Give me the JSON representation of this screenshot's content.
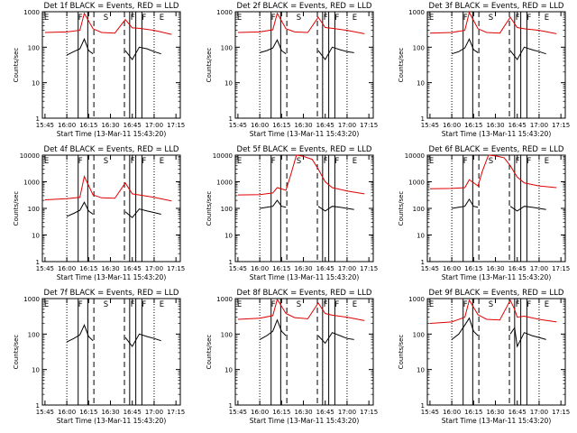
{
  "chart_data": [
    {
      "type": "line",
      "title": "Det 1f BLACK = Events, RED = LLD",
      "xlabel": "Start Time (13-Mar-11 15:43:20)",
      "ylabel": "Counts/sec",
      "ylim": [
        1,
        1000
      ],
      "yscale": "log",
      "x_ticks": [
        "15:45",
        "16:00",
        "16:15",
        "16:30",
        "16:45",
        "17:00",
        "17:15"
      ],
      "y_ticks": [
        "1",
        "10",
        "100",
        "1000"
      ],
      "markers": [
        "E",
        "F",
        "S",
        "F",
        "F",
        "E"
      ],
      "series": [
        {
          "name": "Events",
          "color": "#000000",
          "segments": [
            {
              "x": [
                16.0,
                16.08,
                16.15,
                16.2,
                16.25,
                16.3
              ],
              "y": [
                60,
                75,
                90,
                170,
                80,
                65
              ]
            },
            {
              "x": [
                16.67,
                16.75,
                16.83,
                16.92,
                17.0,
                17.08
              ],
              "y": [
                80,
                45,
                100,
                90,
                75,
                65
              ]
            }
          ]
        },
        {
          "name": "LLD",
          "color": "#e00000",
          "x": [
            15.75,
            16.0,
            16.15,
            16.2,
            16.3,
            16.4,
            16.55,
            16.67,
            16.75,
            16.83,
            17.0,
            17.2
          ],
          "y": [
            260,
            270,
            300,
            900,
            330,
            260,
            250,
            600,
            350,
            340,
            300,
            230
          ]
        }
      ]
    },
    {
      "type": "line",
      "title": "Det 2f BLACK = Events, RED = LLD",
      "xlabel": "Start Time (13-Mar-11 15:43:20)",
      "ylabel": "Counts/sec",
      "ylim": [
        1,
        1000
      ],
      "yscale": "log",
      "x_ticks": [
        "15:45",
        "16:00",
        "16:15",
        "16:30",
        "16:45",
        "17:00",
        "17:15"
      ],
      "y_ticks": [
        "1",
        "10",
        "100",
        "1000"
      ],
      "markers": [
        "E",
        "F",
        "S",
        "F",
        "F",
        "E"
      ],
      "series": [
        {
          "name": "Events",
          "color": "#000000",
          "segments": [
            {
              "x": [
                16.0,
                16.08,
                16.15,
                16.2,
                16.25,
                16.3
              ],
              "y": [
                70,
                80,
                95,
                160,
                80,
                65
              ]
            },
            {
              "x": [
                16.67,
                16.75,
                16.83,
                16.92,
                17.0,
                17.08
              ],
              "y": [
                80,
                45,
                100,
                85,
                75,
                70
              ]
            }
          ]
        },
        {
          "name": "LLD",
          "color": "#e00000",
          "x": [
            15.75,
            16.0,
            16.15,
            16.2,
            16.3,
            16.4,
            16.55,
            16.67,
            16.75,
            16.83,
            17.0,
            17.2
          ],
          "y": [
            260,
            270,
            310,
            900,
            330,
            270,
            260,
            700,
            360,
            340,
            300,
            240
          ]
        }
      ]
    },
    {
      "type": "line",
      "title": "Det 3f BLACK = Events, RED = LLD",
      "xlabel": "Start Time (13-Mar-11 15:43:20)",
      "ylabel": "Counts/sec",
      "ylim": [
        1,
        1000
      ],
      "yscale": "log",
      "x_ticks": [
        "15:45",
        "16:00",
        "16:15",
        "16:30",
        "16:45",
        "17:00",
        "17:15"
      ],
      "y_ticks": [
        "1",
        "10",
        "100",
        "1000"
      ],
      "markers": [
        "E",
        "F",
        "S",
        "F",
        "F",
        "E"
      ],
      "series": [
        {
          "name": "Events",
          "color": "#000000",
          "segments": [
            {
              "x": [
                16.0,
                16.08,
                16.15,
                16.2,
                16.25,
                16.3
              ],
              "y": [
                65,
                75,
                95,
                170,
                85,
                70
              ]
            },
            {
              "x": [
                16.67,
                16.75,
                16.83,
                16.92,
                17.0,
                17.08
              ],
              "y": [
                80,
                45,
                100,
                85,
                75,
                65
              ]
            }
          ]
        },
        {
          "name": "LLD",
          "color": "#e00000",
          "x": [
            15.75,
            16.0,
            16.15,
            16.2,
            16.3,
            16.4,
            16.55,
            16.67,
            16.75,
            16.83,
            17.0,
            17.2
          ],
          "y": [
            250,
            260,
            300,
            950,
            330,
            260,
            250,
            700,
            360,
            330,
            300,
            240
          ]
        }
      ]
    },
    {
      "type": "line",
      "title": "Det 4f BLACK = Events, RED = LLD",
      "xlabel": "Start Time (13-Mar-11 15:43:20)",
      "ylabel": "Counts/sec",
      "ylim": [
        1,
        10000
      ],
      "yscale": "log",
      "x_ticks": [
        "15:45",
        "16:00",
        "16:15",
        "16:30",
        "16:45",
        "17:00",
        "17:15"
      ],
      "y_ticks": [
        "1",
        "10",
        "100",
        "1000",
        "10000"
      ],
      "markers": [
        "E",
        "F",
        "S",
        "F",
        "F",
        "E"
      ],
      "series": [
        {
          "name": "Events",
          "color": "#000000",
          "segments": [
            {
              "x": [
                16.0,
                16.08,
                16.15,
                16.2,
                16.25,
                16.3
              ],
              "y": [
                50,
                65,
                85,
                170,
                80,
                60
              ]
            },
            {
              "x": [
                16.67,
                16.75,
                16.83,
                16.92,
                17.0,
                17.08
              ],
              "y": [
                75,
                45,
                95,
                80,
                70,
                60
              ]
            }
          ]
        },
        {
          "name": "LLD",
          "color": "#e00000",
          "x": [
            15.75,
            16.0,
            16.15,
            16.2,
            16.3,
            16.4,
            16.55,
            16.67,
            16.75,
            16.83,
            17.0,
            17.2
          ],
          "y": [
            210,
            230,
            260,
            1600,
            320,
            250,
            240,
            900,
            350,
            320,
            260,
            190
          ]
        }
      ]
    },
    {
      "type": "line",
      "title": "Det 5f BLACK = Events, RED = LLD",
      "xlabel": "Start Time (13-Mar-11 15:43:20)",
      "ylabel": "Counts/sec",
      "ylim": [
        1,
        10000
      ],
      "yscale": "log",
      "x_ticks": [
        "15:45",
        "16:00",
        "16:15",
        "16:30",
        "16:45",
        "17:00",
        "17:15"
      ],
      "y_ticks": [
        "1",
        "10",
        "100",
        "1000",
        "10000"
      ],
      "markers": [
        "E",
        "F",
        "S",
        "F",
        "F",
        "E"
      ],
      "series": [
        {
          "name": "Events",
          "color": "#000000",
          "segments": [
            {
              "x": [
                16.0,
                16.08,
                16.15,
                16.2,
                16.25,
                16.3
              ],
              "y": [
                100,
                110,
                120,
                200,
                120,
                110
              ]
            },
            {
              "x": [
                16.67,
                16.75,
                16.83,
                16.92,
                17.0,
                17.08
              ],
              "y": [
                120,
                80,
                120,
                110,
                100,
                90
              ]
            }
          ]
        },
        {
          "name": "LLD",
          "color": "#e00000",
          "x": [
            15.75,
            16.0,
            16.15,
            16.2,
            16.3,
            16.35,
            16.42,
            16.5,
            16.6,
            16.67,
            16.75,
            16.83,
            17.0,
            17.2
          ],
          "y": [
            320,
            330,
            380,
            600,
            480,
            1600,
            10000,
            9000,
            7000,
            3000,
            1000,
            600,
            450,
            350
          ]
        }
      ]
    },
    {
      "type": "line",
      "title": "Det 6f BLACK = Events, RED = LLD",
      "xlabel": "Start Time (13-Mar-11 15:43:20)",
      "ylabel": "Counts/sec",
      "ylim": [
        1,
        10000
      ],
      "yscale": "log",
      "x_ticks": [
        "15:45",
        "16:00",
        "16:15",
        "16:30",
        "16:45",
        "17:00",
        "17:15"
      ],
      "y_ticks": [
        "1",
        "10",
        "100",
        "1000",
        "10000"
      ],
      "markers": [
        "E",
        "F",
        "S",
        "F",
        "F",
        "E"
      ],
      "series": [
        {
          "name": "Events",
          "color": "#000000",
          "segments": [
            {
              "x": [
                16.0,
                16.08,
                16.15,
                16.2,
                16.25,
                16.3
              ],
              "y": [
                100,
                110,
                120,
                220,
                120,
                110
              ]
            },
            {
              "x": [
                16.67,
                16.75,
                16.83,
                16.92,
                17.0,
                17.08
              ],
              "y": [
                120,
                80,
                120,
                110,
                100,
                90
              ]
            }
          ]
        },
        {
          "name": "LLD",
          "color": "#e00000",
          "x": [
            15.75,
            16.0,
            16.15,
            16.2,
            16.3,
            16.35,
            16.42,
            16.5,
            16.6,
            16.67,
            16.75,
            16.83,
            17.0,
            17.2
          ],
          "y": [
            550,
            560,
            600,
            1200,
            700,
            2500,
            10000,
            9500,
            8000,
            4000,
            1500,
            900,
            700,
            600
          ]
        }
      ]
    },
    {
      "type": "line",
      "title": "Det 7f BLACK = Events, RED = LLD",
      "xlabel": "Start Time (13-Mar-11 15:43:20)",
      "ylabel": "Counts/sec",
      "ylim": [
        1,
        1000
      ],
      "yscale": "log",
      "x_ticks": [
        "15:45",
        "16:00",
        "16:15",
        "16:30",
        "16:45",
        "17:00",
        "17:15"
      ],
      "y_ticks": [
        "1",
        "10",
        "100",
        "1000"
      ],
      "markers": [
        "E",
        "F",
        "S",
        "F",
        "F",
        "E"
      ],
      "series": [
        {
          "name": "Events",
          "color": "#000000",
          "segments": [
            {
              "x": [
                16.0,
                16.08,
                16.15,
                16.2,
                16.25,
                16.3
              ],
              "y": [
                60,
                75,
                95,
                180,
                85,
                65
              ]
            },
            {
              "x": [
                16.67,
                16.75,
                16.83,
                16.92,
                17.0,
                17.08
              ],
              "y": [
                80,
                45,
                100,
                85,
                75,
                65
              ]
            }
          ]
        }
      ]
    },
    {
      "type": "line",
      "title": "Det 8f BLACK = Events, RED = LLD",
      "xlabel": "Start Time (13-Mar-11 15:43:20)",
      "ylabel": "Counts/sec",
      "ylim": [
        1,
        1000
      ],
      "yscale": "log",
      "x_ticks": [
        "15:45",
        "16:00",
        "16:15",
        "16:30",
        "16:45",
        "17:00",
        "17:15"
      ],
      "y_ticks": [
        "1",
        "10",
        "100",
        "1000"
      ],
      "markers": [
        "E",
        "F",
        "S",
        "F",
        "F",
        "E"
      ],
      "series": [
        {
          "name": "Events",
          "color": "#000000",
          "segments": [
            {
              "x": [
                16.0,
                16.08,
                16.15,
                16.2,
                16.25,
                16.3
              ],
              "y": [
                70,
                90,
                120,
                250,
                120,
                90
              ]
            },
            {
              "x": [
                16.67,
                16.75,
                16.83,
                16.92,
                17.0,
                17.08
              ],
              "y": [
                90,
                55,
                110,
                90,
                75,
                70
              ]
            }
          ]
        },
        {
          "name": "LLD",
          "color": "#e00000",
          "x": [
            15.75,
            16.0,
            16.15,
            16.2,
            16.3,
            16.4,
            16.55,
            16.67,
            16.75,
            16.83,
            17.0,
            17.2
          ],
          "y": [
            260,
            280,
            330,
            950,
            380,
            290,
            270,
            750,
            380,
            340,
            300,
            240
          ]
        }
      ]
    },
    {
      "type": "line",
      "title": "Det 9f BLACK = Events, RED = LLD",
      "xlabel": "Start Time (13-Mar-11 15:43:20)",
      "ylabel": "Counts/sec",
      "ylim": [
        1,
        1000
      ],
      "yscale": "log",
      "x_ticks": [
        "15:45",
        "16:00",
        "16:15",
        "16:30",
        "16:45",
        "17:00",
        "17:15"
      ],
      "y_ticks": [
        "1",
        "10",
        "100",
        "1000"
      ],
      "markers": [
        "E",
        "F",
        "S",
        "F",
        "F",
        "E"
      ],
      "series": [
        {
          "name": "Events",
          "color": "#000000",
          "segments": [
            {
              "x": [
                16.0,
                16.08,
                16.15,
                16.2,
                16.25,
                16.3
              ],
              "y": [
                70,
                100,
                180,
                280,
                120,
                90
              ]
            },
            {
              "x": [
                16.67,
                16.72,
                16.75,
                16.83,
                16.92,
                17.0,
                17.08
              ],
              "y": [
                100,
                150,
                45,
                110,
                90,
                80,
                70
              ]
            }
          ]
        },
        {
          "name": "LLD",
          "color": "#e00000",
          "x": [
            15.75,
            16.0,
            16.15,
            16.2,
            16.3,
            16.4,
            16.55,
            16.67,
            16.72,
            16.75,
            16.83,
            17.0,
            17.2
          ],
          "y": [
            200,
            220,
            300,
            900,
            350,
            260,
            250,
            900,
            500,
            300,
            320,
            260,
            220
          ]
        }
      ]
    }
  ]
}
